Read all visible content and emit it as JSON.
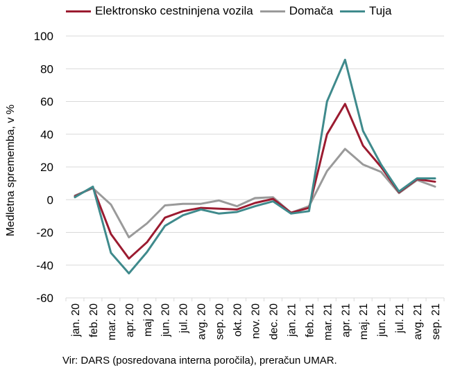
{
  "chart_data": {
    "type": "line",
    "title": "",
    "ylabel": "Medletna sprememba, v %",
    "xlabel": "",
    "ylim": [
      -60,
      100
    ],
    "yticks": [
      -60,
      -40,
      -20,
      0,
      20,
      40,
      60,
      80,
      100
    ],
    "grid": true,
    "legend_position": "top",
    "categories": [
      "jan. 20",
      "feb. 20",
      "mar. 20",
      "apr. 20",
      "maj 20",
      "jun. 20",
      "jul. 20",
      "avg. 20",
      "sep. 20",
      "okt. 20",
      "nov. 20",
      "dec. 20",
      "jan. 21",
      "feb. 21",
      "mar. 21",
      "apr. 21",
      "maj. 21",
      "jun. 21",
      "jul. 21",
      "avg. 21",
      "sep. 21"
    ],
    "series": [
      {
        "name": "Elektronsko cestninjena vozila",
        "color": "#9b1b30",
        "values": [
          2,
          7.5,
          -21,
          -36,
          -26,
          -11,
          -7,
          -5,
          -5.5,
          -6,
          -2,
          0.5,
          -8,
          -5,
          40,
          58.5,
          33,
          20,
          4.5,
          12.5,
          11
        ]
      },
      {
        "name": "Domača",
        "color": "#9a9a9a",
        "values": [
          2.5,
          7,
          -3,
          -23,
          -14.5,
          -3.5,
          -2.5,
          -2.5,
          -0.5,
          -4,
          1,
          1.5,
          -8,
          -4,
          17.5,
          31,
          21.5,
          17,
          4,
          12,
          8
        ]
      },
      {
        "name": "Tuja",
        "color": "#3f8a8c",
        "values": [
          1.5,
          8,
          -32.5,
          -45,
          -32,
          -16,
          -9.5,
          -6,
          -8.5,
          -7.5,
          -4,
          -1,
          -8.5,
          -7,
          60,
          85.5,
          42,
          21.5,
          5,
          13,
          13
        ]
      }
    ]
  },
  "source_text": "Vir: DARS (posredovana interna poročila), preračun UMAR."
}
